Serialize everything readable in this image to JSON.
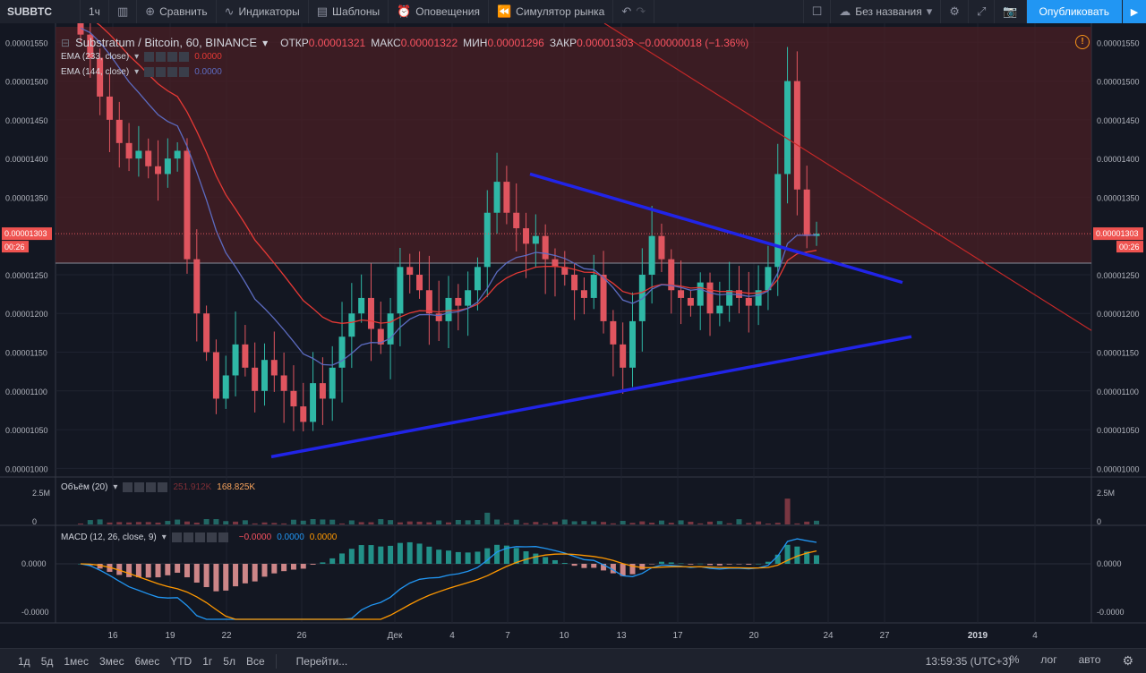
{
  "toolbar": {
    "symbol": "SUBBTC",
    "interval": "1ч",
    "compare": "Сравнить",
    "indicators": "Индикаторы",
    "templates": "Шаблоны",
    "alerts": "Оповещения",
    "replay": "Симулятор рынка",
    "layout_name": "Без названия",
    "publish": "Опубликовать"
  },
  "legend": {
    "title": "Substratum / Bitcoin, 60, BINANCE",
    "open_label": "ОТКР",
    "open": "0.00001321",
    "high_label": "МАКС",
    "high": "0.00001322",
    "low_label": "МИН",
    "low": "0.00001296",
    "close_label": "ЗАКР",
    "close": "0.00001303",
    "change": "−0.00000018 (−1.36%)",
    "ema233": "EMA (233, close)",
    "ema233_value": "0.0000",
    "ema144": "EMA (144, close)",
    "ema144_value": "0.0000",
    "volume": "Объём (20)",
    "volume_value1": "251.912K",
    "volume_value2": "168.825K",
    "macd": "MACD (12, 26, close, 9)",
    "macd_v1": "−0.0000",
    "macd_v2": "0.0000",
    "macd_v3": "0.0000"
  },
  "price_axis": {
    "current_price": "0.00001303",
    "countdown": "00:26"
  },
  "volume_axis": [
    "2.5M",
    "0"
  ],
  "macd_axis": [
    "0.0000",
    "-0.0000"
  ],
  "chart_data": {
    "type": "candlestick",
    "title": "Substratum / Bitcoin, 60, BINANCE",
    "y_ticks": [
      "0.00001550",
      "0.00001500",
      "0.00001450",
      "0.00001400",
      "0.00001350",
      "0.00001300",
      "0.00001250",
      "0.00001200",
      "0.00001150",
      "0.00001100",
      "0.00001050",
      "0.00001000"
    ],
    "x_ticks": [
      "16",
      "19",
      "22",
      "26",
      "Дек",
      "4",
      "7",
      "10",
      "13",
      "17",
      "20",
      "24",
      "27",
      "2019",
      "4"
    ],
    "ylim": [
      9.9e-06,
      1.57e-05
    ],
    "close_series": [
      1.56e-05,
      1.53e-05,
      1.48e-05,
      1.45e-05,
      1.42e-05,
      1.4e-05,
      1.41e-05,
      1.39e-05,
      1.38e-05,
      1.4e-05,
      1.41e-05,
      1.27e-05,
      1.2e-05,
      1.15e-05,
      1.09e-05,
      1.12e-05,
      1.16e-05,
      1.13e-05,
      1.1e-05,
      1.14e-05,
      1.12e-05,
      1.1e-05,
      1.08e-05,
      1.06e-05,
      1.11e-05,
      1.09e-05,
      1.13e-05,
      1.17e-05,
      1.2e-05,
      1.22e-05,
      1.18e-05,
      1.16e-05,
      1.2e-05,
      1.26e-05,
      1.25e-05,
      1.23e-05,
      1.2e-05,
      1.19e-05,
      1.22e-05,
      1.21e-05,
      1.23e-05,
      1.26e-05,
      1.33e-05,
      1.37e-05,
      1.33e-05,
      1.31e-05,
      1.29e-05,
      1.3e-05,
      1.27e-05,
      1.26e-05,
      1.25e-05,
      1.23e-05,
      1.22e-05,
      1.25e-05,
      1.19e-05,
      1.16e-05,
      1.13e-05,
      1.19e-05,
      1.25e-05,
      1.3e-05,
      1.27e-05,
      1.23e-05,
      1.22e-05,
      1.21e-05,
      1.24e-05,
      1.2e-05,
      1.21e-05,
      1.23e-05,
      1.22e-05,
      1.21e-05,
      1.23e-05,
      1.26e-05,
      1.38e-05,
      1.5e-05,
      1.36e-05,
      1.3e-05,
      1.303e-05
    ],
    "ema233_end": 1.25e-05,
    "ema144_end": 1.255e-05,
    "current_price": 1.303e-05
  }
}
